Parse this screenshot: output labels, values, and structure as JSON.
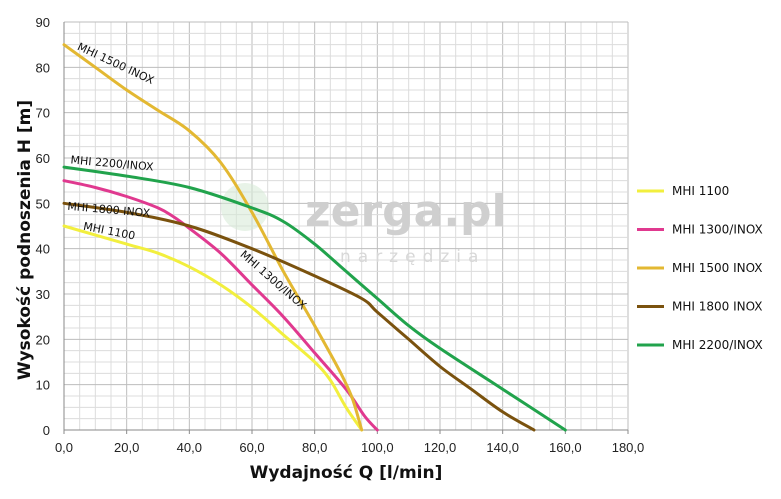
{
  "chart_data": {
    "type": "line",
    "xlabel": "Wydajność Q [l/min]",
    "ylabel": "Wysokość podnoszenia H [m]",
    "xlim": [
      0,
      180
    ],
    "ylim": [
      0,
      90
    ],
    "x_ticks": [
      "0,0",
      "20,0",
      "40,0",
      "60,0",
      "80,0",
      "100,0",
      "120,0",
      "140,0",
      "160,0",
      "180,0"
    ],
    "y_ticks": [
      "0",
      "10",
      "20",
      "30",
      "40",
      "50",
      "60",
      "70",
      "80",
      "90"
    ],
    "grid": true,
    "legend_position": "right",
    "watermark": {
      "main": "zerga.pl",
      "sub": "narzędzia"
    },
    "series": [
      {
        "name": "MHI 1100",
        "color": "#f2ef3e",
        "curve_label": "MHI 1100",
        "points": [
          [
            0,
            45
          ],
          [
            20,
            41
          ],
          [
            30,
            39
          ],
          [
            40,
            36
          ],
          [
            50,
            32
          ],
          [
            60,
            27
          ],
          [
            70,
            21
          ],
          [
            80,
            15
          ],
          [
            85,
            11
          ],
          [
            90,
            5
          ],
          [
            95,
            0
          ]
        ]
      },
      {
        "name": "MHI 1300/INOX",
        "color": "#e0398f",
        "curve_label": "MHI 1300/INOX",
        "points": [
          [
            0,
            55
          ],
          [
            10,
            53.5
          ],
          [
            20,
            51.5
          ],
          [
            30,
            49
          ],
          [
            35,
            47
          ],
          [
            40,
            44.5
          ],
          [
            50,
            39
          ],
          [
            60,
            32
          ],
          [
            70,
            25
          ],
          [
            80,
            17
          ],
          [
            90,
            9
          ],
          [
            96,
            3
          ],
          [
            100,
            0
          ]
        ]
      },
      {
        "name": "MHI 1500 INOX",
        "color": "#e3b832",
        "curve_label": "MHI 1500 INOX",
        "points": [
          [
            0,
            85
          ],
          [
            10,
            80
          ],
          [
            20,
            75
          ],
          [
            30,
            70.5
          ],
          [
            40,
            66
          ],
          [
            50,
            59
          ],
          [
            60,
            48
          ],
          [
            70,
            35
          ],
          [
            80,
            23
          ],
          [
            88,
            13
          ],
          [
            92,
            7
          ],
          [
            95,
            0
          ]
        ]
      },
      {
        "name": "MHI 1800 INOX",
        "color": "#7a520e",
        "curve_label": "MHI 1800 INOX",
        "points": [
          [
            0,
            50
          ],
          [
            20,
            48
          ],
          [
            40,
            45
          ],
          [
            60,
            40
          ],
          [
            80,
            34
          ],
          [
            95,
            29
          ],
          [
            100,
            26
          ],
          [
            110,
            20
          ],
          [
            120,
            14
          ],
          [
            130,
            9
          ],
          [
            140,
            4
          ],
          [
            150,
            0
          ]
        ]
      },
      {
        "name": "MHI 2200/INOX",
        "color": "#21a34c",
        "curve_label": "MHI 2200/INOX",
        "points": [
          [
            0,
            58
          ],
          [
            20,
            56
          ],
          [
            40,
            53.5
          ],
          [
            60,
            49
          ],
          [
            70,
            46
          ],
          [
            80,
            41
          ],
          [
            90,
            35
          ],
          [
            100,
            29
          ],
          [
            110,
            23
          ],
          [
            120,
            18
          ],
          [
            140,
            9
          ],
          [
            160,
            0
          ]
        ]
      }
    ]
  }
}
